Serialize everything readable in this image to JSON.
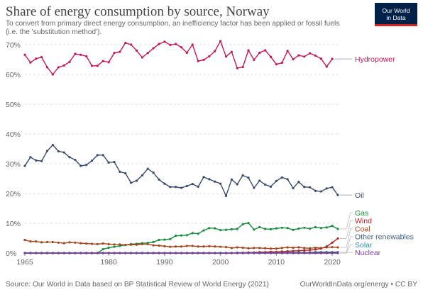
{
  "header": {
    "title": "Share of energy consumption by source, Norway",
    "subtitle": "To convert from primary direct energy consumption, an inefficiency factor has been applied or fossil fuels (i.e. the 'substitution method')."
  },
  "logo": {
    "line1": "Our World",
    "line2": "in Data",
    "bg_color": "#002147",
    "bar_color": "#ce261e"
  },
  "footer": {
    "source": "Source: Our World in Data based on BP Statistical Review of World Energy (2021)",
    "credit": "OurWorldInData.org/energy • CC BY"
  },
  "chart_data": {
    "type": "line",
    "title": "Share of energy consumption by source, Norway",
    "xlabel": "",
    "ylabel": "",
    "xlim": [
      1965,
      2021
    ],
    "ylim": [
      0,
      70
    ],
    "grid": true,
    "legend": "right, end-of-line labels",
    "x_ticks": [
      1965,
      1980,
      1990,
      2000,
      2010,
      2020
    ],
    "x_tick_labels": [
      "1965",
      "1980",
      "1990",
      "2000",
      "2010",
      "2020"
    ],
    "y_ticks": [
      0,
      10,
      20,
      30,
      40,
      50,
      60,
      70
    ],
    "y_tick_labels": [
      "0%",
      "10%",
      "20%",
      "30%",
      "40%",
      "50%",
      "60%",
      "70%"
    ],
    "x": [
      1965,
      1966,
      1967,
      1968,
      1969,
      1970,
      1971,
      1972,
      1973,
      1974,
      1975,
      1976,
      1977,
      1978,
      1979,
      1980,
      1981,
      1982,
      1983,
      1984,
      1985,
      1986,
      1987,
      1988,
      1989,
      1990,
      1991,
      1992,
      1993,
      1994,
      1995,
      1996,
      1997,
      1998,
      1999,
      2000,
      2001,
      2002,
      2003,
      2004,
      2005,
      2006,
      2007,
      2008,
      2009,
      2010,
      2011,
      2012,
      2013,
      2014,
      2015,
      2016,
      2017,
      2018,
      2019,
      2020,
      2021
    ],
    "series": [
      {
        "name": "Hydropower",
        "color": "#c2185b",
        "values": [
          66.6,
          64,
          65.3,
          65.8,
          62.4,
          60,
          62.4,
          63,
          64.2,
          66.9,
          66.6,
          66.1,
          62.9,
          62.9,
          64.5,
          64.1,
          67.2,
          67.6,
          70.6,
          70,
          68,
          65.7,
          67.2,
          68.8,
          70.2,
          71,
          69.9,
          70.2,
          69.1,
          67.3,
          70,
          64.5,
          64.9,
          66.1,
          67.8,
          71.2,
          66,
          67.6,
          62.1,
          62.5,
          68.1,
          64.9,
          67.3,
          68.1,
          65.9,
          63.4,
          63.9,
          67.9,
          65.1,
          66.4,
          66,
          67.1,
          66.3,
          65.3,
          62.6,
          65.2,
          null
        ]
      },
      {
        "name": "Oil",
        "color": "#3b4a6b",
        "values": [
          29.3,
          32.2,
          31.1,
          30.9,
          34.3,
          36.3,
          34.2,
          33.8,
          32.2,
          31.3,
          29.3,
          29.6,
          31,
          32.9,
          32.9,
          30.4,
          30.6,
          27.3,
          26.8,
          23.6,
          24.3,
          26.1,
          28.3,
          27,
          24.7,
          23.3,
          22.2,
          22.2,
          21.9,
          22.5,
          23.2,
          22.3,
          25.5,
          24.8,
          24,
          23.3,
          19.2,
          24.7,
          23.1,
          26.1,
          25.3,
          21.9,
          24.3,
          23,
          22.3,
          24.2,
          25.4,
          24.8,
          21.8,
          23.9,
          22.2,
          22.1,
          20.9,
          20.7,
          21.7,
          22.1,
          19.5
        ]
      },
      {
        "name": "Gas",
        "color": "#1a8a3c",
        "values": [
          0,
          0,
          0,
          0,
          0,
          0,
          0,
          0,
          0,
          0,
          0,
          0,
          0,
          0,
          1.3,
          1.8,
          2.1,
          2.4,
          2.7,
          3,
          3.1,
          3.3,
          3.4,
          3.7,
          4.4,
          4.5,
          4.7,
          5.8,
          5.9,
          6,
          6.7,
          6.5,
          7.6,
          8.4,
          8.3,
          7.7,
          7.8,
          8,
          8.1,
          9.7,
          10.1,
          7.9,
          8.7,
          8.1,
          8,
          8.3,
          8.5,
          8.4,
          7.8,
          8.2,
          8.5,
          8.2,
          8.7,
          8.4,
          8.6,
          9.1,
          8.1
        ]
      },
      {
        "name": "Wind",
        "color": "#b31f1f",
        "values": [
          0,
          0,
          0,
          0,
          0,
          0,
          0,
          0,
          0,
          0,
          0,
          0,
          0,
          0,
          0,
          0,
          0,
          0,
          0,
          0,
          0,
          0,
          0,
          0,
          0,
          0,
          0,
          0,
          0,
          0,
          0,
          0,
          0,
          0,
          0,
          0,
          0,
          0,
          0.1,
          0.1,
          0.2,
          0.2,
          0.3,
          0.3,
          0.4,
          0.4,
          0.5,
          0.6,
          0.7,
          0.8,
          0.9,
          1,
          1.2,
          1.5,
          2.2,
          3.5,
          4.9
        ]
      },
      {
        "name": "Coal",
        "color": "#a2461f",
        "values": [
          4.4,
          3.9,
          3.9,
          3.6,
          3.7,
          3.7,
          3.5,
          3.3,
          3.6,
          3.5,
          3.3,
          3.2,
          3.1,
          3,
          3.2,
          3,
          2.9,
          2.9,
          2.7,
          2.8,
          2.8,
          3,
          3,
          2.6,
          2.5,
          2.3,
          2.1,
          2.2,
          2.2,
          2.4,
          2.4,
          2.2,
          2.2,
          2.3,
          2.2,
          2.1,
          2,
          1.7,
          1.9,
          1.8,
          1.6,
          1.7,
          1.7,
          1.6,
          1.5,
          1.5,
          1.7,
          1.9,
          1.8,
          1.9,
          1.7,
          1.6,
          1.8,
          1.7,
          1.9,
          2,
          1.9
        ]
      },
      {
        "name": "Other renewables",
        "color": "#3e5f78",
        "values": [
          0,
          0,
          0,
          0,
          0,
          0,
          0,
          0,
          0,
          0,
          0,
          0,
          0,
          0,
          0,
          0,
          0,
          0,
          0,
          0,
          0,
          0,
          0,
          0,
          0,
          0,
          0,
          0,
          0,
          0,
          0,
          0,
          0,
          0,
          0,
          0,
          0,
          0,
          0.1,
          0.1,
          0.1,
          0.1,
          0.1,
          0.1,
          0.1,
          0.1,
          0.1,
          0.2,
          0.2,
          0.2,
          0.2,
          0.2,
          0.3,
          0.3,
          0.3,
          0.3,
          0.3
        ]
      },
      {
        "name": "Solar",
        "color": "#2a8fa2",
        "values": [
          0,
          0,
          0,
          0,
          0,
          0,
          0,
          0,
          0,
          0,
          0,
          0,
          0,
          0,
          0,
          0,
          0,
          0,
          0,
          0,
          0,
          0,
          0,
          0,
          0,
          0,
          0,
          0,
          0,
          0,
          0,
          0,
          0,
          0,
          0,
          0,
          0,
          0,
          0,
          0,
          0,
          0,
          0,
          0,
          0,
          0,
          0,
          0,
          0,
          0,
          0,
          0,
          0,
          0,
          0,
          0,
          0
        ]
      },
      {
        "name": "Nuclear",
        "color": "#7c3c9a",
        "values": [
          0,
          0,
          0,
          0,
          0,
          0,
          0,
          0,
          0,
          0,
          0,
          0,
          0,
          0,
          0,
          0,
          0,
          0,
          0,
          0,
          0,
          0,
          0,
          0,
          0,
          0,
          0,
          0,
          0,
          0,
          0,
          0,
          0,
          0,
          0,
          0,
          0,
          0,
          0,
          0,
          0,
          0,
          0,
          0,
          0,
          0,
          0,
          0,
          0,
          0,
          0,
          0,
          0,
          0,
          0,
          0,
          0
        ]
      }
    ]
  }
}
